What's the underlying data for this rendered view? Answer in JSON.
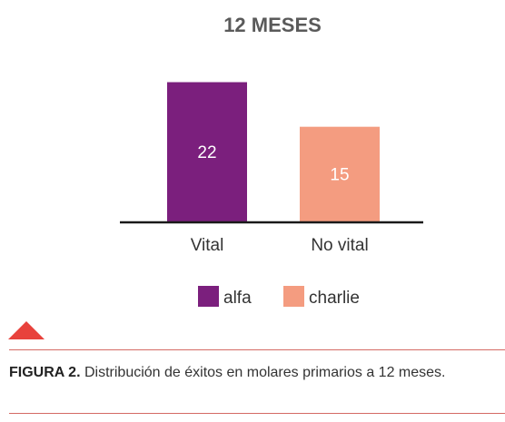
{
  "chart_data": {
    "type": "bar",
    "title": "12 MESES",
    "categories": [
      "Vital",
      "No vital"
    ],
    "series": [
      {
        "name": "alfa",
        "category": "Vital",
        "value": 22,
        "color": "#7b1f7d"
      },
      {
        "name": "charlie",
        "category": "No vital",
        "value": 15,
        "color": "#f49c80"
      }
    ],
    "values": [
      22,
      15
    ],
    "ylim": [
      0,
      23.5
    ],
    "grid": false,
    "legend_placement": "bottom-center"
  },
  "caption": {
    "label": "FIGURA 2.",
    "text": "Distribución de éxitos en molares primarios a 12 meses."
  },
  "colors": {
    "accent_triangle": "#e8423c",
    "rule": "#d46a64"
  }
}
